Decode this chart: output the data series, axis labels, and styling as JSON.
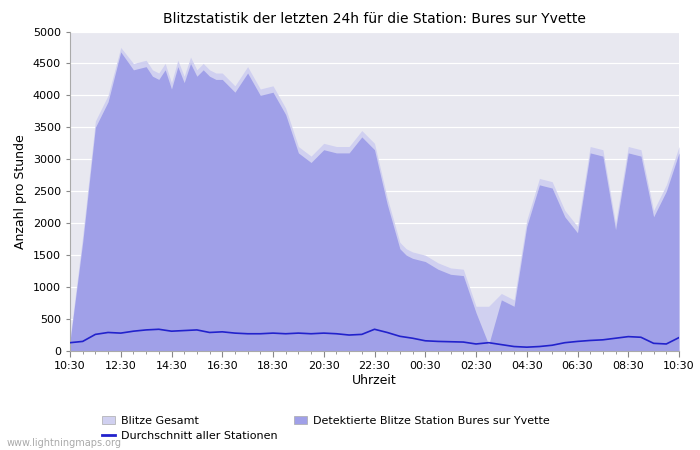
{
  "title": "Blitzstatistik der letzten 24h für die Station: Bures sur Yvette",
  "xlabel": "Uhrzeit",
  "ylabel": "Anzahl pro Stunde",
  "ylim": [
    0,
    5000
  ],
  "yticks": [
    0,
    500,
    1000,
    1500,
    2000,
    2500,
    3000,
    3500,
    4000,
    4500,
    5000
  ],
  "background_color": "#ffffff",
  "plot_bg_color": "#e8e8f0",
  "watermark": "www.lightningmaps.org",
  "x_labels": [
    "10:30",
    "12:30",
    "14:30",
    "16:30",
    "18:30",
    "20:30",
    "22:30",
    "00:30",
    "02:30",
    "04:30",
    "06:30",
    "08:30",
    "10:30"
  ],
  "color_gesamt": "#d0d0f0",
  "color_detektiert": "#a0a0e8",
  "color_linie": "#2222cc",
  "legend_gesamt": "Blitze Gesamt",
  "legend_detektiert": "Detektierte Blitze Station Bures sur Yvette",
  "legend_linie": "Durchschnitt aller Stationen",
  "x_bg": [
    0.0,
    0.5,
    1.0,
    1.5,
    2.0,
    2.5,
    3.0,
    3.25,
    3.5,
    3.75,
    4.0,
    4.25,
    4.5,
    4.75,
    5.0,
    5.25,
    5.5,
    5.75,
    6.0,
    6.5,
    7.0,
    7.5,
    8.0,
    8.5,
    9.0,
    9.5,
    10.0,
    10.5,
    11.0,
    11.5,
    12.0,
    12.5,
    13.0,
    13.25,
    13.5,
    14.0,
    14.5,
    15.0,
    15.5,
    16.0,
    16.5,
    17.0,
    17.5,
    18.0,
    18.5,
    19.0,
    19.5,
    20.0,
    20.5,
    21.0,
    21.5,
    22.0,
    22.5,
    23.0,
    23.5,
    24.0
  ],
  "y_gesamt": [
    200,
    1800,
    3600,
    4000,
    4750,
    4500,
    4550,
    4400,
    4350,
    4500,
    4200,
    4550,
    4300,
    4600,
    4400,
    4500,
    4400,
    4350,
    4350,
    4150,
    4450,
    4100,
    4150,
    3800,
    3200,
    3050,
    3250,
    3200,
    3200,
    3450,
    3250,
    2400,
    1700,
    1600,
    1550,
    1500,
    1380,
    1300,
    1280,
    700,
    700,
    900,
    800,
    2050,
    2700,
    2650,
    2200,
    1950,
    3200,
    3150,
    2000,
    3200,
    3150,
    2200,
    2600,
    3200
  ],
  "y_detekt": [
    150,
    1700,
    3500,
    3900,
    4680,
    4400,
    4450,
    4300,
    4250,
    4400,
    4100,
    4450,
    4200,
    4500,
    4300,
    4400,
    4300,
    4250,
    4250,
    4050,
    4350,
    4000,
    4050,
    3700,
    3100,
    2950,
    3150,
    3100,
    3100,
    3350,
    3150,
    2300,
    1600,
    1500,
    1450,
    1400,
    1280,
    1200,
    1180,
    600,
    100,
    800,
    700,
    1950,
    2600,
    2550,
    2100,
    1850,
    3100,
    3050,
    1900,
    3100,
    3050,
    2100,
    2500,
    3100
  ],
  "x_avg": [
    0.0,
    0.5,
    1.0,
    1.5,
    2.0,
    2.5,
    3.0,
    3.5,
    4.0,
    4.5,
    5.0,
    5.5,
    6.0,
    6.5,
    7.0,
    7.5,
    8.0,
    8.5,
    9.0,
    9.5,
    10.0,
    10.5,
    11.0,
    11.5,
    12.0,
    12.5,
    13.0,
    13.5,
    14.0,
    14.5,
    15.0,
    15.5,
    16.0,
    16.5,
    17.0,
    17.5,
    18.0,
    18.5,
    19.0,
    19.5,
    20.0,
    20.5,
    21.0,
    21.5,
    22.0,
    22.5,
    23.0,
    23.5,
    24.0
  ],
  "y_avg": [
    130,
    150,
    260,
    290,
    280,
    310,
    330,
    340,
    310,
    320,
    330,
    290,
    300,
    280,
    270,
    270,
    280,
    270,
    280,
    270,
    280,
    270,
    250,
    260,
    340,
    290,
    230,
    200,
    160,
    150,
    145,
    140,
    110,
    130,
    100,
    70,
    60,
    70,
    90,
    130,
    150,
    165,
    175,
    200,
    225,
    215,
    120,
    110,
    210
  ]
}
